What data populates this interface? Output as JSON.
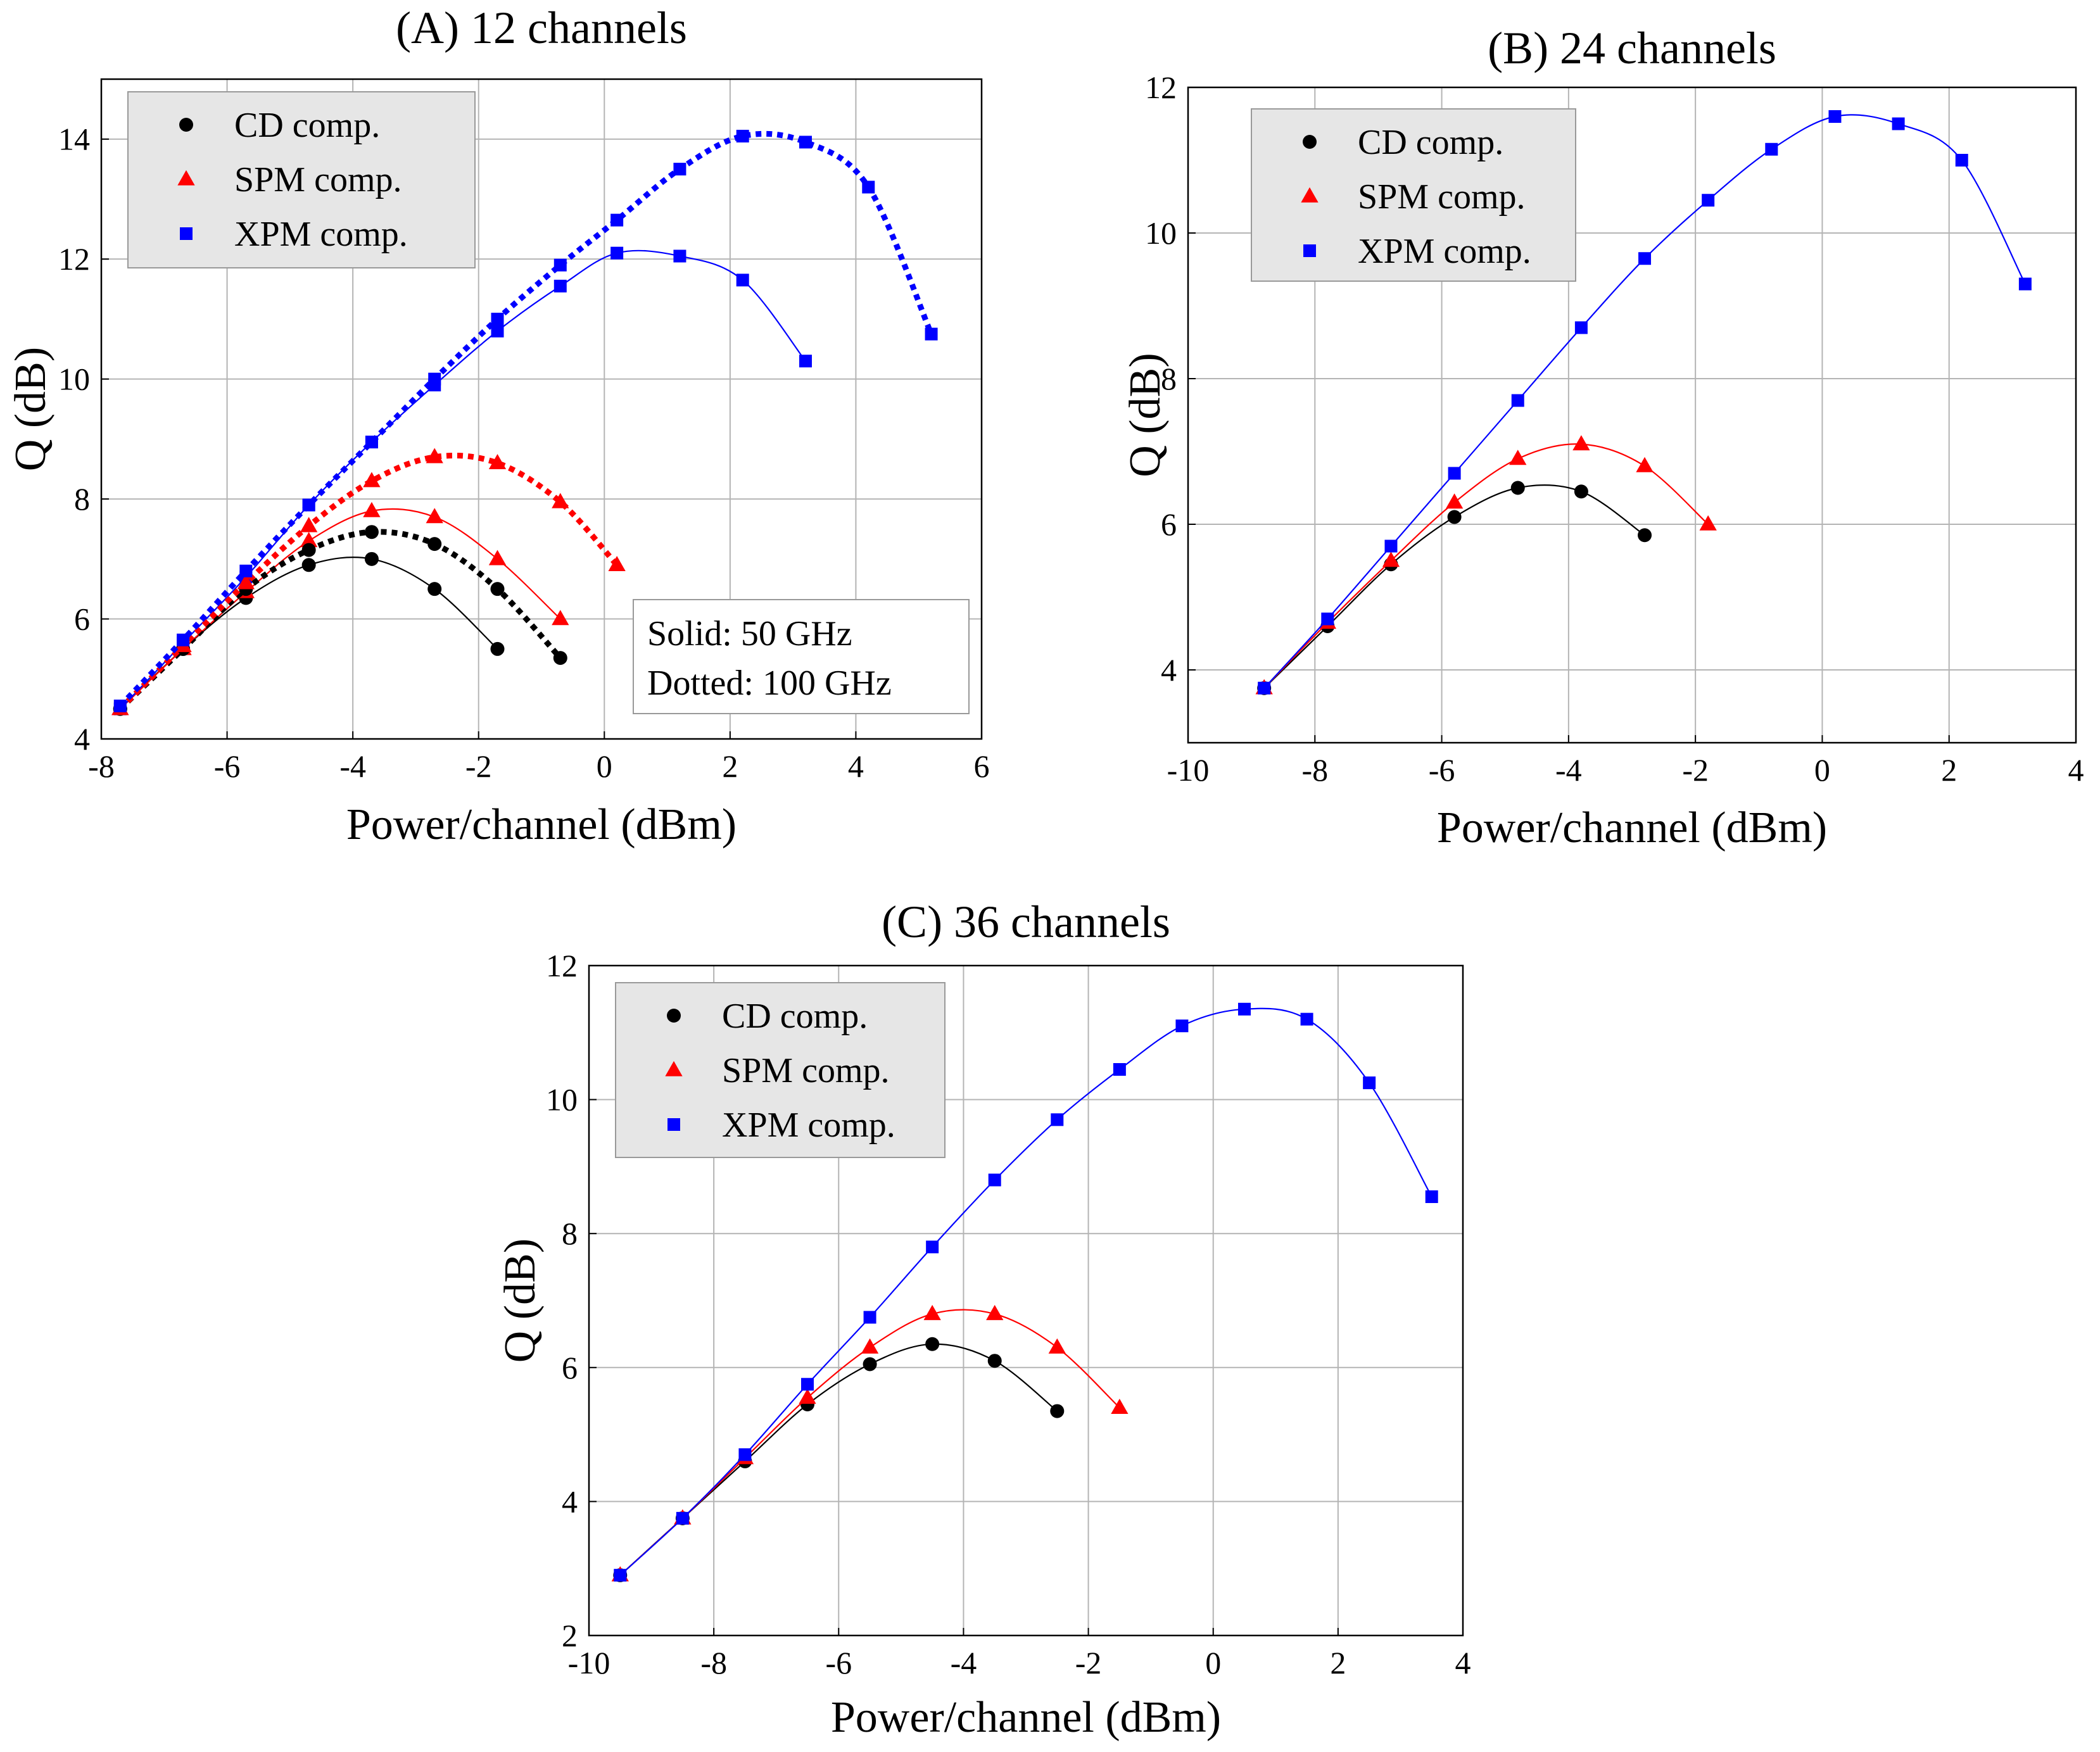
{
  "figure": {
    "colors": {
      "cd": "#000000",
      "spm": "#ff0000",
      "xpm": "#0000ff",
      "grid": "#b4b4b4",
      "legend_bg": "#e6e6e6"
    },
    "markers": {
      "cd": "circle",
      "spm": "triangle",
      "xpm": "square"
    }
  },
  "chart_data": [
    {
      "type": "line",
      "title": "(A) 12 channels",
      "xlabel": "Power/channel (dBm)",
      "ylabel": "Q (dB)",
      "xlim": [
        -8,
        6
      ],
      "ylim": [
        4,
        15
      ],
      "xticks": [
        -8,
        -6,
        -4,
        -2,
        0,
        2,
        4,
        6
      ],
      "yticks": [
        4,
        6,
        8,
        10,
        12,
        14
      ],
      "grid": true,
      "legend": {
        "placement": "top-left",
        "entries": [
          "CD comp.",
          "SPM comp.",
          "XPM comp."
        ]
      },
      "annotation": [
        "Solid: 50 GHz",
        "Dotted: 100 GHz"
      ],
      "series": [
        {
          "name": "CD comp.",
          "style": "solid",
          "color": "#000000",
          "marker": "circle",
          "x": [
            -7.7,
            -6.7,
            -5.7,
            -4.7,
            -3.7,
            -2.7,
            -1.7,
            -0.7
          ],
          "y": [
            4.5,
            5.5,
            6.35,
            6.9,
            7.0,
            6.5,
            5.5,
            null
          ]
        },
        {
          "name": "SPM comp.",
          "style": "solid",
          "color": "#ff0000",
          "marker": "triangle",
          "x": [
            -7.7,
            -6.7,
            -5.7,
            -4.7,
            -3.7,
            -2.7,
            -1.7,
            -0.7
          ],
          "y": [
            4.5,
            5.5,
            6.45,
            7.3,
            7.8,
            7.7,
            7.0,
            6.0
          ]
        },
        {
          "name": "XPM comp.",
          "style": "solid",
          "color": "#0000ff",
          "marker": "square",
          "x": [
            -7.7,
            -6.7,
            -5.7,
            -4.7,
            -3.7,
            -2.7,
            -1.7,
            -0.7,
            0.2,
            1.2,
            2.2,
            3.2
          ],
          "y": [
            4.5,
            5.6,
            6.7,
            7.9,
            8.95,
            9.9,
            10.8,
            11.55,
            12.1,
            12.05,
            11.65,
            10.3
          ]
        },
        {
          "name": "CD comp.",
          "style": "dotted",
          "color": "#000000",
          "marker": "circle",
          "x": [
            -7.7,
            -6.7,
            -5.7,
            -4.7,
            -3.7,
            -2.7,
            -1.7,
            -0.7
          ],
          "y": [
            4.5,
            5.5,
            6.5,
            7.15,
            7.45,
            7.25,
            6.5,
            5.35
          ]
        },
        {
          "name": "SPM comp.",
          "style": "dotted",
          "color": "#ff0000",
          "marker": "triangle",
          "x": [
            -7.7,
            -6.7,
            -5.7,
            -4.7,
            -3.7,
            -2.7,
            -1.7,
            -0.7,
            0.2
          ],
          "y": [
            4.5,
            5.55,
            6.6,
            7.55,
            8.3,
            8.7,
            8.6,
            7.95,
            6.9
          ]
        },
        {
          "name": "XPM comp.",
          "style": "dotted",
          "color": "#0000ff",
          "marker": "square",
          "x": [
            -7.7,
            -6.7,
            -5.7,
            -4.7,
            -3.7,
            -2.7,
            -1.7,
            -0.7,
            0.2,
            1.2,
            2.2,
            3.2,
            4.2,
            5.2
          ],
          "y": [
            4.55,
            5.65,
            6.8,
            7.9,
            8.95,
            10.0,
            11.0,
            11.9,
            12.65,
            13.5,
            14.05,
            13.95,
            13.2,
            10.75
          ]
        }
      ]
    },
    {
      "type": "line",
      "title": "(B) 24 channels",
      "xlabel": "Power/channel (dBm)",
      "ylabel": "Q (dB)",
      "xlim": [
        -10,
        4
      ],
      "ylim": [
        3,
        12
      ],
      "xticks": [
        -10,
        -8,
        -6,
        -4,
        -2,
        0,
        2,
        4
      ],
      "yticks": [
        4,
        6,
        8,
        10,
        12
      ],
      "grid": true,
      "legend": {
        "placement": "top-left",
        "entries": [
          "CD comp.",
          "SPM comp.",
          "XPM comp."
        ]
      },
      "series": [
        {
          "name": "CD comp.",
          "color": "#000000",
          "marker": "circle",
          "x": [
            -8.8,
            -7.8,
            -6.8,
            -5.8,
            -4.8,
            -3.8,
            -2.8
          ],
          "y": [
            3.75,
            4.6,
            5.45,
            6.1,
            6.5,
            6.45,
            5.85
          ]
        },
        {
          "name": "SPM comp.",
          "color": "#ff0000",
          "marker": "triangle",
          "x": [
            -8.8,
            -7.8,
            -6.8,
            -5.8,
            -4.8,
            -3.8,
            -2.8,
            -1.8
          ],
          "y": [
            3.75,
            4.65,
            5.5,
            6.3,
            6.9,
            7.1,
            6.8,
            6.0
          ]
        },
        {
          "name": "XPM comp.",
          "color": "#0000ff",
          "marker": "square",
          "x": [
            -8.8,
            -7.8,
            -6.8,
            -5.8,
            -4.8,
            -3.8,
            -2.8,
            -1.8,
            -0.8,
            0.2,
            1.2,
            2.2,
            3.2
          ],
          "y": [
            3.75,
            4.7,
            5.7,
            6.7,
            7.7,
            8.7,
            9.65,
            10.45,
            11.15,
            11.6,
            11.5,
            11.0,
            9.3
          ]
        }
      ]
    },
    {
      "type": "line",
      "title": "(C) 36 channels",
      "xlabel": "Power/channel (dBm)",
      "ylabel": "Q (dB)",
      "xlim": [
        -10,
        4
      ],
      "ylim": [
        2,
        12
      ],
      "xticks": [
        -10,
        -8,
        -6,
        -4,
        -2,
        0,
        2,
        4
      ],
      "yticks": [
        2,
        4,
        6,
        8,
        10,
        12
      ],
      "grid": true,
      "legend": {
        "placement": "top-left",
        "entries": [
          "CD comp.",
          "SPM comp.",
          "XPM comp."
        ]
      },
      "series": [
        {
          "name": "CD comp.",
          "color": "#000000",
          "marker": "circle",
          "x": [
            -9.5,
            -8.5,
            -7.5,
            -6.5,
            -5.5,
            -4.5,
            -3.5,
            -2.5
          ],
          "y": [
            2.9,
            3.75,
            4.6,
            5.45,
            6.05,
            6.35,
            6.1,
            5.35
          ]
        },
        {
          "name": "SPM comp.",
          "color": "#ff0000",
          "marker": "triangle",
          "x": [
            -9.5,
            -8.5,
            -7.5,
            -6.5,
            -5.5,
            -4.5,
            -3.5,
            -2.5,
            -1.5
          ],
          "y": [
            2.9,
            3.75,
            4.65,
            5.55,
            6.3,
            6.8,
            6.8,
            6.3,
            5.4
          ]
        },
        {
          "name": "XPM comp.",
          "color": "#0000ff",
          "marker": "square",
          "x": [
            -9.5,
            -8.5,
            -7.5,
            -6.5,
            -5.5,
            -4.5,
            -3.5,
            -2.5,
            -1.5,
            -0.5,
            0.5,
            1.5,
            2.5,
            3.5
          ],
          "y": [
            2.9,
            3.75,
            4.7,
            5.75,
            6.75,
            7.8,
            8.8,
            9.7,
            10.45,
            11.1,
            11.35,
            11.2,
            10.25,
            8.55
          ]
        }
      ]
    }
  ]
}
